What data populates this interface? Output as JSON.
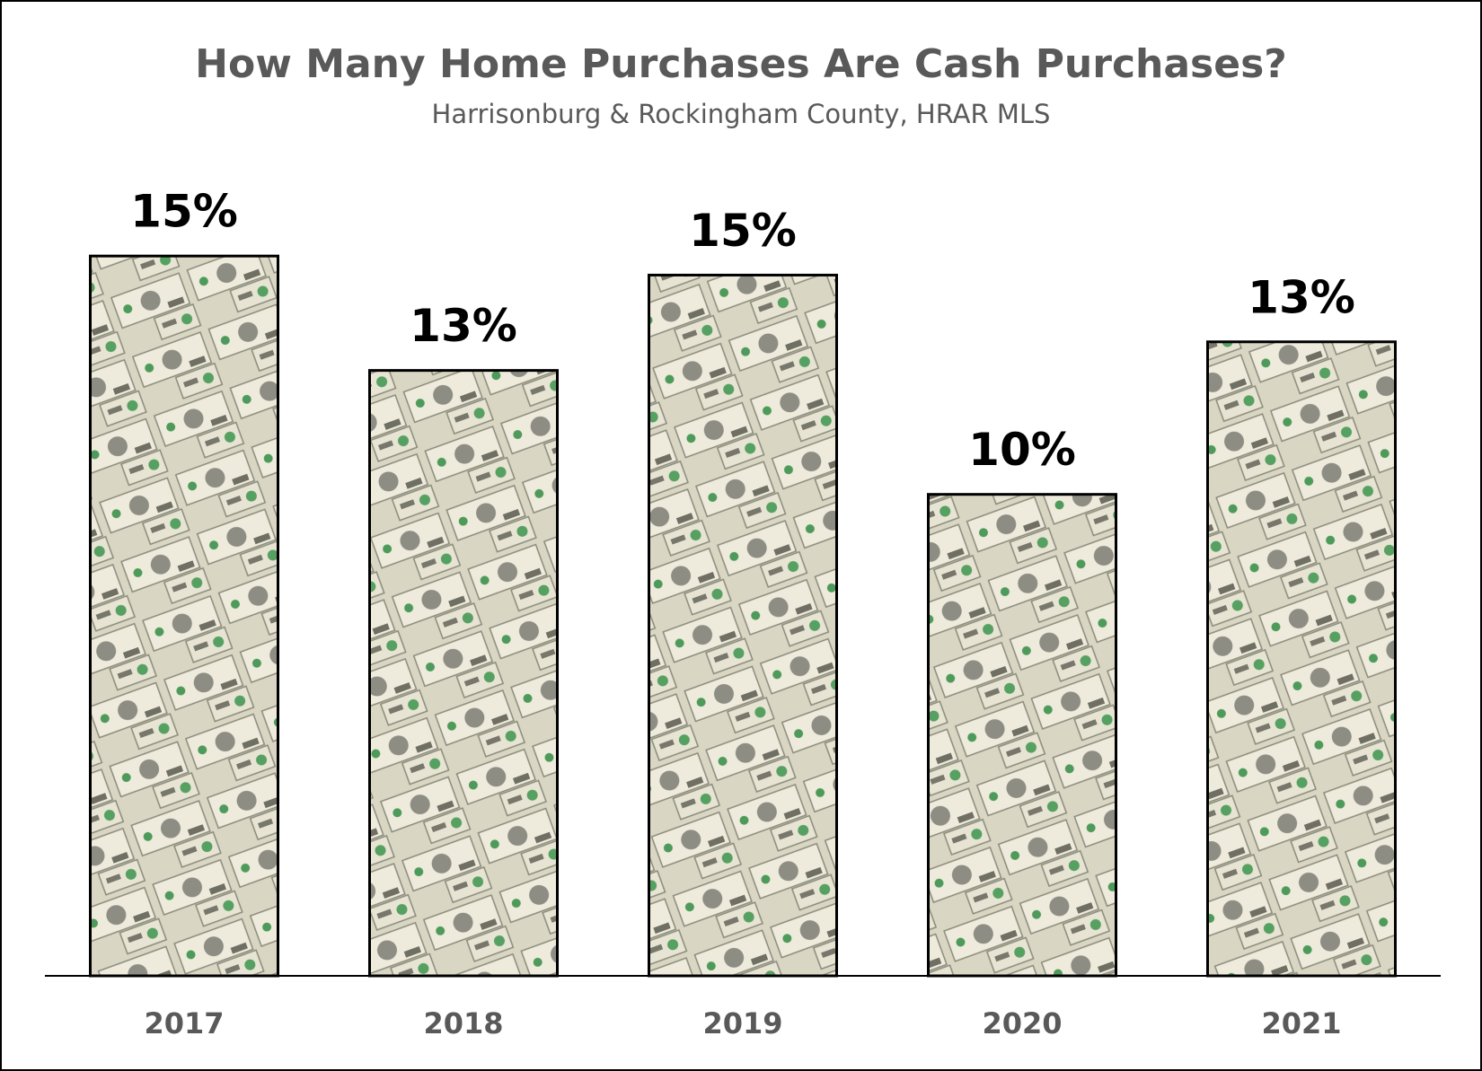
{
  "chart_data": {
    "type": "bar",
    "title": "How Many Home Purchases Are Cash Purchases?",
    "subtitle": "Harrisonburg & Rockingham County, HRAR MLS",
    "categories": [
      "2017",
      "2018",
      "2019",
      "2020",
      "2021"
    ],
    "values": [
      15.1,
      12.7,
      14.7,
      10.1,
      13.3
    ],
    "value_labels": [
      "15%",
      "13%",
      "15%",
      "10%",
      "13%"
    ],
    "color": "#e9e6d6"
  }
}
